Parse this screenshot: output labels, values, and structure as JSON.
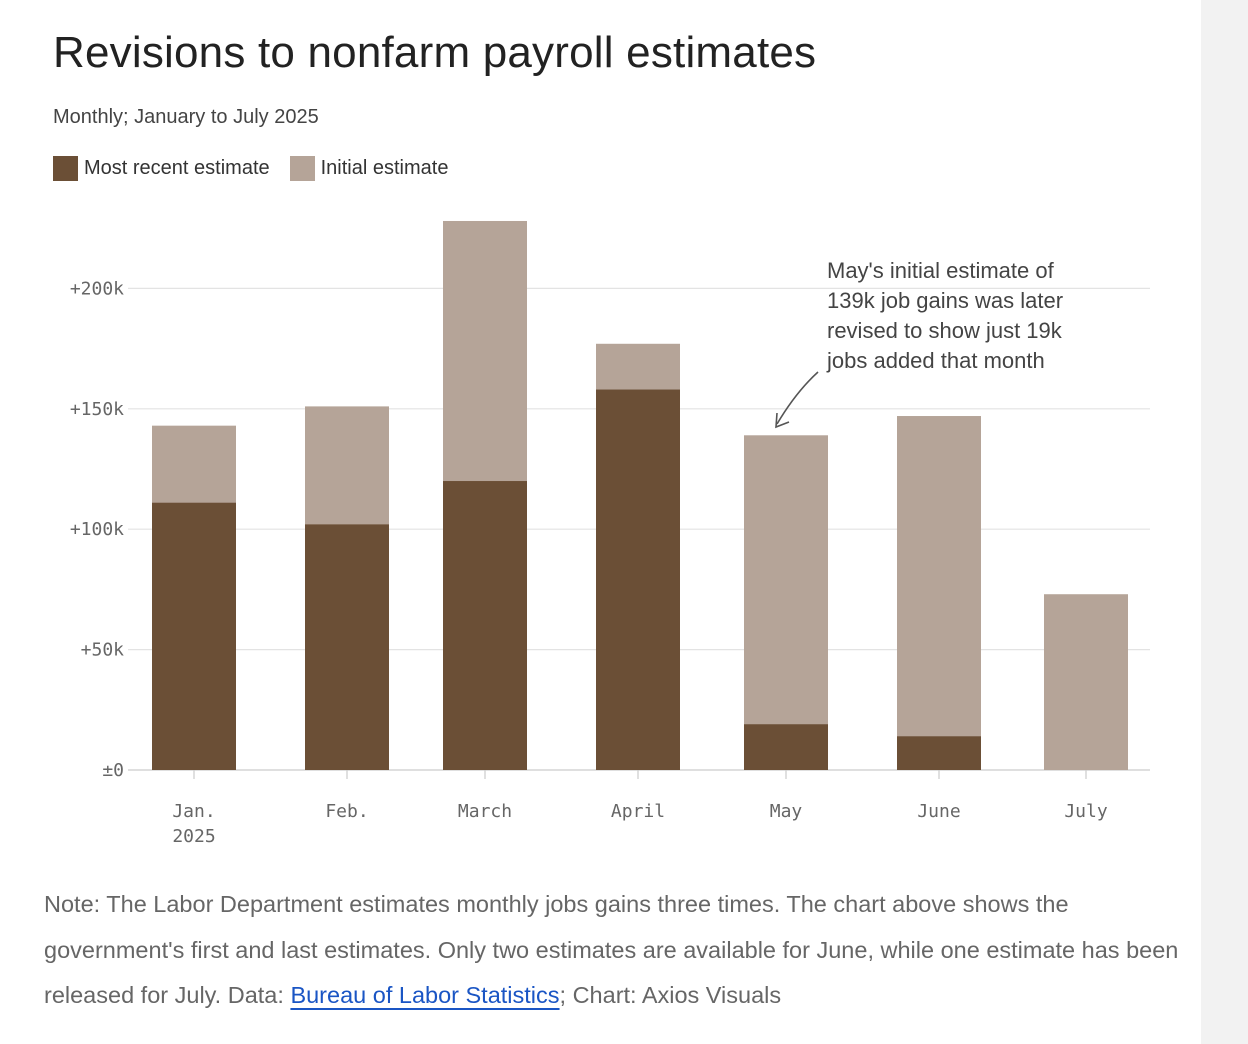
{
  "title": "Revisions to nonfarm payroll estimates",
  "subtitle": "Monthly; January to July 2025",
  "legend": {
    "recent_label": "Most recent estimate",
    "initial_label": "Initial estimate"
  },
  "colors": {
    "recent": "#6b4f36",
    "initial": "#b5a498",
    "grid": "#e3e3e3",
    "axis_text": "#666666",
    "link": "#1a55c4"
  },
  "chart_data": {
    "type": "bar",
    "title": "Revisions to nonfarm payroll estimates",
    "subtitle": "Monthly; January to July 2025",
    "categories": [
      "Jan.\n2025",
      "Feb.",
      "March",
      "April",
      "May",
      "June",
      "July"
    ],
    "series": [
      {
        "name": "Most recent estimate",
        "values": [
          111,
          102,
          120,
          158,
          19,
          14,
          null
        ]
      },
      {
        "name": "Initial estimate",
        "values": [
          143,
          151,
          228,
          177,
          139,
          147,
          73
        ]
      }
    ],
    "units": "thousands of jobs",
    "ylim": [
      0,
      225
    ],
    "yticks": [
      0,
      50,
      100,
      150,
      200
    ],
    "ytick_labels": [
      "±0",
      "+50k",
      "+100k",
      "+150k",
      "+200k"
    ],
    "grid": true,
    "legend_position": "top-left",
    "xlabel": "",
    "ylabel": "",
    "annotation": {
      "target": "May",
      "lines": [
        "May's initial estimate of",
        "139k job gains was later",
        "revised to show just 19k",
        "jobs added that month"
      ]
    }
  },
  "note": {
    "text_before_link": "Note: The Labor Department estimates monthly jobs gains three times. The chart above shows the government's first and last estimates. Only two estimates are available for June, while one estimate has been released for July. Data: ",
    "link_text": "Bureau of Labor Statistics",
    "text_after_link": "; Chart: Axios Visuals"
  }
}
